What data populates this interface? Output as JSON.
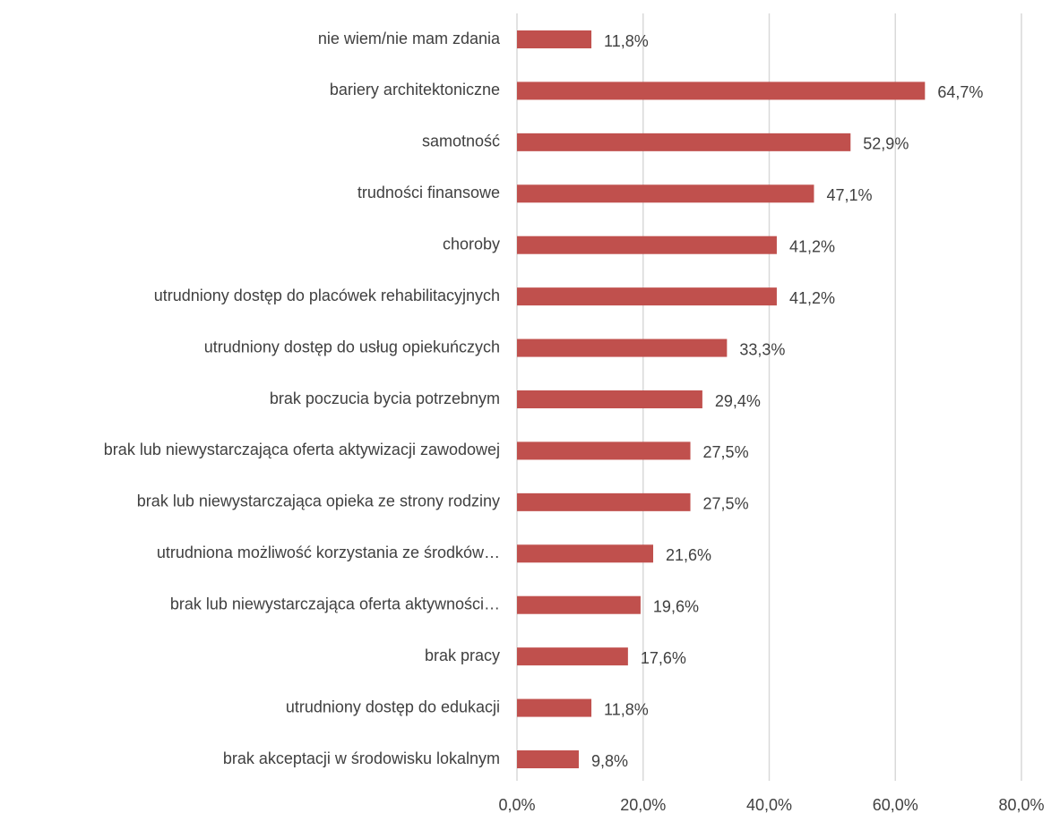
{
  "chart_data": {
    "type": "bar",
    "orientation": "horizontal",
    "categories": [
      "nie wiem/nie mam zdania",
      "bariery architektoniczne",
      "samotność",
      "trudności finansowe",
      "choroby",
      "utrudniony dostęp do placówek rehabilitacyjnych",
      "utrudniony dostęp do usług opiekuńczych",
      "brak poczucia bycia potrzebnym",
      "brak lub niewystarczająca oferta aktywizacji zawodowej",
      "brak lub niewystarczająca opieka ze strony rodziny",
      "utrudniona możliwość korzystania ze środków…",
      "brak lub niewystarczająca oferta aktywności…",
      "brak pracy",
      "utrudniony dostęp do edukacji",
      "brak akceptacji w środowisku lokalnym"
    ],
    "values": [
      11.8,
      64.7,
      52.9,
      47.1,
      41.2,
      41.2,
      33.3,
      29.4,
      27.5,
      27.5,
      21.6,
      19.6,
      17.6,
      11.8,
      9.8
    ],
    "value_labels": [
      "11,8%",
      "64,7%",
      "52,9%",
      "47,1%",
      "41,2%",
      "41,2%",
      "33,3%",
      "29,4%",
      "27,5%",
      "27,5%",
      "21,6%",
      "19,6%",
      "17,6%",
      "11,8%",
      "9,8%"
    ],
    "color": "#c0504d",
    "xlim": [
      0,
      80
    ],
    "xticks": [
      {
        "value": 0,
        "label": "0,0%"
      },
      {
        "value": 20,
        "label": "20,0%"
      },
      {
        "value": 40,
        "label": "40,0%"
      },
      {
        "value": 60,
        "label": "60,0%"
      },
      {
        "value": 80,
        "label": "80,0%"
      }
    ],
    "grid": true
  }
}
